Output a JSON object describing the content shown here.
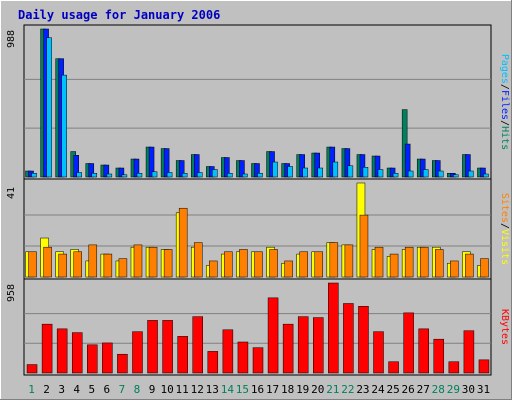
{
  "chart_data": {
    "type": "bar",
    "title": "Daily usage for January 2006",
    "categories": [
      "1",
      "2",
      "3",
      "4",
      "5",
      "6",
      "7",
      "8",
      "9",
      "10",
      "11",
      "12",
      "13",
      "14",
      "15",
      "16",
      "17",
      "18",
      "19",
      "20",
      "21",
      "22",
      "23",
      "24",
      "25",
      "26",
      "27",
      "28",
      "29",
      "30",
      "31"
    ],
    "weekend_days": [
      "1",
      "7",
      "8",
      "14",
      "15",
      "21",
      "22",
      "28",
      "29"
    ],
    "panels": [
      {
        "name": "hits-files-pages",
        "ymax_label": "988",
        "ylim": [
          0,
          988
        ],
        "legend": [
          {
            "label": "Pages",
            "color": "#00c0ff"
          },
          {
            "label": "Files",
            "color": "#0020ff"
          },
          {
            "label": "Hits",
            "color": "#00805c"
          }
        ],
        "separator": "/",
        "series": [
          {
            "name": "Hits",
            "color": "#00805c",
            "values": [
              40,
              988,
              790,
              170,
              90,
              80,
              60,
              120,
              200,
              190,
              110,
              150,
              70,
              130,
              110,
              90,
              170,
              90,
              150,
              160,
              200,
              190,
              150,
              140,
              60,
              450,
              120,
              110,
              25,
              150,
              60
            ]
          },
          {
            "name": "Files",
            "color": "#0020ff",
            "values": [
              40,
              988,
              790,
              145,
              90,
              80,
              60,
              120,
              200,
              190,
              110,
              150,
              70,
              130,
              110,
              90,
              170,
              90,
              150,
              160,
              200,
              190,
              150,
              140,
              60,
              220,
              120,
              110,
              25,
              150,
              60
            ]
          },
          {
            "name": "Pages",
            "color": "#00c0ff",
            "values": [
              25,
              930,
              680,
              30,
              25,
              20,
              15,
              25,
              35,
              30,
              25,
              30,
              50,
              25,
              20,
              25,
              100,
              70,
              60,
              60,
              100,
              75,
              65,
              50,
              25,
              40,
              50,
              40,
              15,
              40,
              20
            ]
          }
        ]
      },
      {
        "name": "visits-sites",
        "ymax_label": "41",
        "ylim": [
          0,
          41
        ],
        "legend": [
          {
            "label": "Sites",
            "color": "#ff8000"
          },
          {
            "label": "Visits",
            "color": "#ffff00"
          }
        ],
        "separator": "/",
        "series": [
          {
            "name": "Visits",
            "color": "#ffff00",
            "values": [
              11,
              17,
              11,
              12,
              7,
              10,
              7,
              13,
              13,
              12,
              28,
              13,
              5,
              10,
              11,
              11,
              13,
              6,
              10,
              11,
              15,
              14,
              41,
              12,
              9,
              12,
              13,
              13,
              6,
              11,
              5
            ]
          },
          {
            "name": "Sites",
            "color": "#ff8000",
            "values": [
              11,
              13,
              10,
              11,
              14,
              10,
              8,
              14,
              13,
              12,
              30,
              15,
              7,
              11,
              12,
              11,
              12,
              7,
              11,
              11,
              15,
              14,
              27,
              13,
              10,
              13,
              13,
              12,
              7,
              10,
              8
            ]
          }
        ]
      },
      {
        "name": "kbytes",
        "ymax_label": "958",
        "ylim": [
          0,
          958
        ],
        "legend": [
          {
            "label": "KBytes",
            "color": "#ff0000"
          }
        ],
        "separator": "",
        "series": [
          {
            "name": "KBytes",
            "color": "#ff0000",
            "values": [
              90,
              520,
              470,
              430,
              300,
              320,
              200,
              440,
              560,
              560,
              390,
              600,
              230,
              460,
              330,
              270,
              800,
              520,
              600,
              590,
              958,
              740,
              710,
              440,
              120,
              640,
              470,
              360,
              120,
              450,
              140
            ]
          }
        ]
      }
    ]
  }
}
